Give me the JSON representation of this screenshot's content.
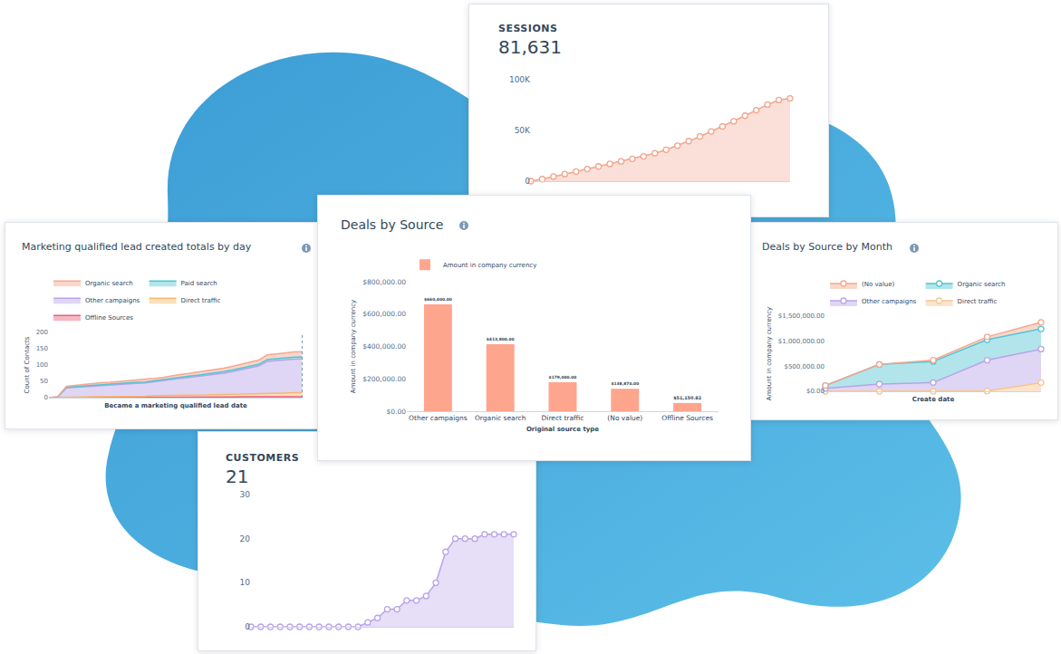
{
  "chart_data": [
    {
      "type": "area",
      "title": "SESSIONS",
      "total": 81631,
      "categories": [
        null,
        null,
        null,
        null,
        null,
        null,
        null,
        null,
        null,
        null,
        null,
        null,
        null,
        null,
        null,
        null,
        null,
        null,
        null,
        null,
        null,
        null,
        null,
        null
      ],
      "values": [
        0,
        2000,
        4500,
        7000,
        9500,
        12000,
        14500,
        17000,
        19500,
        22000,
        24500,
        27500,
        31000,
        35000,
        39500,
        44000,
        49000,
        54000,
        59000,
        64500,
        70000,
        75500,
        80000,
        81631
      ],
      "color": "#f2a58e",
      "marker": "circle",
      "ylim": [
        0,
        100000
      ],
      "yticks": [
        0,
        {
          "value": 50000,
          "label": "50K"
        },
        {
          "value": 100000,
          "label": "100K"
        }
      ],
      "grid": false,
      "tick_labels": "y"
    },
    {
      "type": "area",
      "stacked": true,
      "title": "Marketing qualified lead created totals by day",
      "xlabel": "Became a marketing qualified lead date",
      "ylabel": "Count of Contacts",
      "categories": [
        null,
        null,
        null,
        null,
        null,
        null,
        null,
        null,
        null,
        null,
        null,
        null,
        null,
        null,
        null,
        null,
        null,
        null,
        null,
        null,
        null,
        null,
        null,
        null,
        null,
        null,
        null,
        null,
        null,
        null
      ],
      "series": [
        {
          "name": "Organic search",
          "color": "#f5a78f",
          "values": [
            0,
            1,
            3,
            4,
            4,
            5,
            5,
            5,
            6,
            6,
            6,
            7,
            7,
            7,
            8,
            8,
            8,
            9,
            9,
            10,
            10,
            11,
            11,
            12,
            13,
            14,
            15,
            15,
            16,
            16
          ]
        },
        {
          "name": "Paid search",
          "color": "#51c6d2",
          "values": [
            0,
            0,
            2,
            2,
            2,
            2,
            3,
            3,
            3,
            3,
            3,
            3,
            3,
            4,
            4,
            4,
            4,
            4,
            4,
            5,
            5,
            5,
            5,
            5,
            5,
            6,
            6,
            6,
            6,
            6
          ]
        },
        {
          "name": "Other campaigns",
          "color": "#b8a3e8",
          "values": [
            0,
            2,
            28,
            30,
            31,
            32,
            35,
            36,
            37,
            38,
            40,
            41,
            43,
            45,
            48,
            52,
            55,
            57,
            60,
            63,
            66,
            70,
            75,
            80,
            85,
            98,
            100,
            102,
            103,
            104
          ]
        },
        {
          "name": "Direct traffic",
          "color": "#f9b76b",
          "values": [
            0,
            0,
            1,
            1,
            1,
            2,
            2,
            2,
            2,
            3,
            3,
            3,
            4,
            4,
            5,
            5,
            5,
            6,
            6,
            7,
            7,
            8,
            8,
            9,
            9,
            10,
            11,
            11,
            12,
            12
          ]
        },
        {
          "name": "Offline Sources",
          "color": "#e9617f",
          "values": [
            0,
            0,
            1,
            1,
            1,
            1,
            1,
            1,
            1,
            1,
            1,
            1,
            2,
            2,
            2,
            2,
            2,
            2,
            2,
            2,
            2,
            2,
            3,
            3,
            3,
            3,
            3,
            3,
            3,
            3
          ]
        }
      ],
      "ylim": [
        0,
        200
      ],
      "yticks": [
        0,
        50,
        100,
        150,
        200
      ],
      "grid": false,
      "legend": "top",
      "tick_labels": "y"
    },
    {
      "type": "bar",
      "title": "Deals by Source",
      "xlabel": "Original source type",
      "ylabel": "Amount in company currency",
      "categories": [
        "Other campaigns",
        "Organic search",
        "Direct traffic",
        "(No value)",
        "Offline Sources"
      ],
      "series": [
        {
          "name": "Amount in company currency",
          "color": "#fea58e",
          "values": [
            660400,
            413800,
            179000,
            138870,
            51150.82
          ],
          "value_labels": [
            "$660,400.00",
            "$413,800.00",
            "$179,000.00",
            "$138,870.00",
            "$51,150.82"
          ]
        }
      ],
      "ylim": [
        0,
        800000
      ],
      "yticks": [
        {
          "value": 0,
          "label": "$0.00"
        },
        {
          "value": 200000,
          "label": "$200,000.00"
        },
        {
          "value": 400000,
          "label": "$400,000.00"
        },
        {
          "value": 600000,
          "label": "$600,000.00"
        },
        {
          "value": 800000,
          "label": "$800,000.00"
        }
      ],
      "grid": false,
      "legend": "top-left",
      "data_labels": true
    },
    {
      "type": "area",
      "stacked": true,
      "title": "Deals by Source by Month",
      "xlabel": "Create date",
      "ylabel": "Amount in company currency",
      "categories": [
        null,
        null,
        null,
        null,
        null
      ],
      "series": [
        {
          "name": "(No value)",
          "color": "#f5a78f",
          "values": [
            0,
            0,
            29000,
            58000,
            131000
          ]
        },
        {
          "name": "Organic search",
          "color": "#51c6d2",
          "values": [
            58000,
            391000,
            420000,
            406000,
            405000
          ]
        },
        {
          "name": "Other campaigns",
          "color": "#b8a3e8",
          "values": [
            58000,
            145000,
            174000,
            618000,
            667000
          ]
        },
        {
          "name": "Direct traffic",
          "color": "#f9c48d",
          "values": [
            0,
            0,
            0,
            5000,
            174000
          ]
        }
      ],
      "marker": "circle",
      "ylim": [
        0,
        1500000
      ],
      "yticks": [
        {
          "value": 0,
          "label": "$0.00"
        },
        {
          "value": 500000,
          "label": "$500,000.00"
        },
        {
          "value": 1000000,
          "label": "$1,000,000.00"
        },
        {
          "value": 1500000,
          "label": "$1,500,000.00"
        }
      ],
      "grid": false,
      "legend": "top",
      "tick_labels": "y"
    },
    {
      "type": "area",
      "title": "CUSTOMERS",
      "total": 21,
      "categories": [
        null,
        null,
        null,
        null,
        null,
        null,
        null,
        null,
        null,
        null,
        null,
        null,
        null,
        null,
        null,
        null,
        null,
        null,
        null,
        null,
        null,
        null,
        null,
        null,
        null,
        null,
        null,
        null
      ],
      "values": [
        0,
        0,
        0,
        0,
        0,
        0,
        0,
        0,
        0,
        0,
        0,
        0,
        1,
        2,
        4,
        4,
        6,
        6,
        7,
        10,
        17,
        20,
        20,
        20,
        21,
        21,
        21,
        21
      ],
      "color": "#b8a3e8",
      "marker": "circle",
      "ylim": [
        0,
        30
      ],
      "yticks": [
        0,
        10,
        20,
        30
      ],
      "grid": false,
      "tick_labels": "y"
    }
  ]
}
